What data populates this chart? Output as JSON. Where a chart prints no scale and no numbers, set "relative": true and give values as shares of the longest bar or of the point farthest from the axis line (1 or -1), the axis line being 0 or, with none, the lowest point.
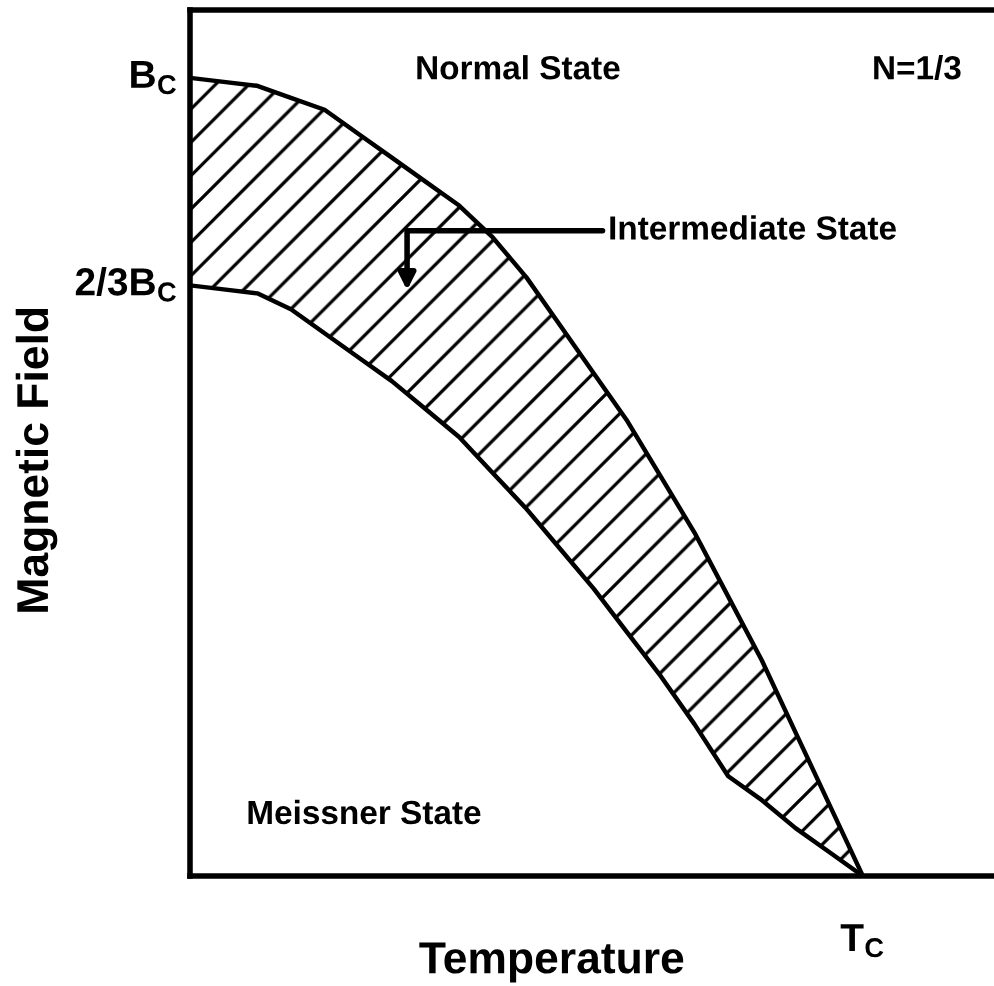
{
  "chart_data": {
    "type": "line",
    "xlabel": "Temperature",
    "ylabel": "Magnetic Field",
    "categories": [
      null,
      null,
      null,
      null,
      null,
      null,
      null,
      null,
      null,
      null,
      null,
      null,
      null,
      null,
      null,
      null,
      null,
      null,
      null,
      null,
      null
    ],
    "relative": true,
    "series": [
      {
        "color": "#000000",
        "values": [
          1,
          0.995,
          0.99,
          0.975,
          0.96,
          0.93,
          0.9,
          0.87,
          0.84,
          0.8,
          0.75,
          0.69,
          0.63,
          0.57,
          0.5,
          0.43,
          0.35,
          0.27,
          0.18,
          0.09,
          0
        ]
      },
      {
        "color": "#000000",
        "values": [
          0.74,
          0.735,
          0.73,
          0.71,
          0.68,
          0.65,
          0.62,
          0.585,
          0.55,
          0.505,
          0.46,
          0.41,
          0.36,
          0.305,
          0.25,
          0.19,
          0.125,
          0.095,
          0.06,
          0.03,
          0
        ],
        "lower": [
          0.74,
          0.735,
          0.73,
          0.71,
          0.68,
          0.65,
          0.62,
          0.585,
          0.55,
          0.505,
          0.46,
          0.41,
          0.36,
          0.305,
          0.25,
          0.19,
          0.125,
          0.095,
          0.06,
          0.03,
          0
        ],
        "upper": [
          1,
          0.995,
          0.99,
          0.975,
          0.96,
          0.93,
          0.9,
          0.87,
          0.84,
          0.8,
          0.75,
          0.69,
          0.63,
          0.57,
          0.5,
          0.43,
          0.35,
          0.27,
          0.18,
          0.09,
          0
        ]
      }
    ],
    "annotations": [
      "Normal State",
      "N=1/3",
      "Intermediate State",
      "Meissner State",
      "T$_{C}$",
      "B$_{C}$",
      "2/3B$_{C}$"
    ],
    "grid": false,
    "legend": false,
    "marker": "none",
    "line_style": "solid"
  }
}
